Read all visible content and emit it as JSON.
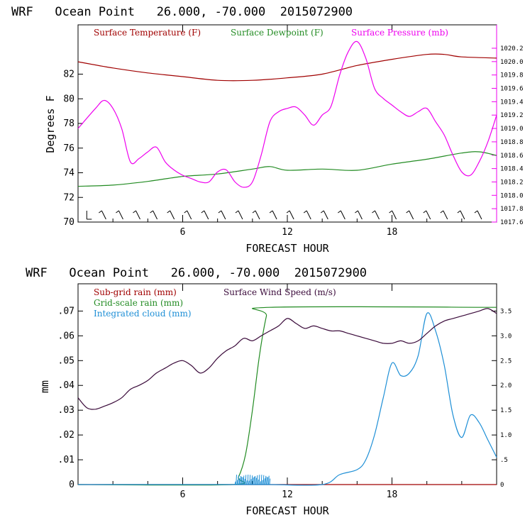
{
  "chart_data": [
    {
      "type": "line",
      "title": "WRF   Ocean Point   26.000, -70.000  2015072900",
      "xlabel": "FORECAST HOUR",
      "ylabel": "Degrees F",
      "xlim": [
        0,
        24
      ],
      "ylim": [
        70,
        86
      ],
      "y2lim": [
        1017.6,
        1020.55
      ],
      "xticks": [
        "6",
        "12",
        "18"
      ],
      "yticks": [
        "70",
        "72",
        "74",
        "76",
        "78",
        "80",
        "82"
      ],
      "y2ticks": [
        "1017.6",
        "1017.8",
        "1018.0",
        "1018.2",
        "1018.4",
        "1018.6",
        "1018.8",
        "1019.0",
        "1019.2",
        "1019.4",
        "1019.6",
        "1019.8",
        "1020.0",
        "1020.2"
      ],
      "grid": false,
      "legend": "top",
      "barb_count": 24,
      "colors": {
        "temp": "#a00000",
        "dew": "#228b22",
        "pres": "#ee00ee",
        "y2axis": "#ee00ee"
      },
      "series": [
        {
          "name": "Surface Temperature (F)",
          "axis": "left",
          "color": "#a00000",
          "x": [
            0,
            2,
            4,
            6,
            8,
            10,
            12,
            14,
            16,
            18,
            20,
            21,
            22,
            24
          ],
          "y": [
            83.0,
            82.5,
            82.1,
            81.8,
            81.5,
            81.5,
            81.7,
            82.0,
            82.7,
            83.2,
            83.6,
            83.6,
            83.4,
            83.3
          ]
        },
        {
          "name": "Surface Dewpoint (F)",
          "axis": "left",
          "color": "#228b22",
          "x": [
            0,
            2,
            4,
            6,
            8,
            10,
            11,
            12,
            14,
            16,
            18,
            20,
            22,
            23,
            24
          ],
          "y": [
            72.9,
            73.0,
            73.3,
            73.7,
            73.9,
            74.3,
            74.5,
            74.2,
            74.3,
            74.2,
            74.7,
            75.1,
            75.6,
            75.7,
            75.4
          ]
        },
        {
          "name": "Surface Pressure (mb)",
          "axis": "right",
          "color": "#ee00ee",
          "x": [
            0,
            1,
            1.5,
            2,
            2.5,
            3,
            3.5,
            4,
            4.5,
            5,
            5.5,
            6,
            6.5,
            7,
            7.5,
            8,
            8.5,
            9,
            9.5,
            10,
            10.5,
            11,
            11.5,
            12,
            12.5,
            13,
            13.5,
            14,
            14.5,
            15,
            15.5,
            16,
            16.5,
            17,
            17.5,
            18,
            18.5,
            19,
            19.5,
            20,
            20.5,
            21,
            21.5,
            22,
            22.5,
            23,
            23.5,
            24
          ],
          "y": [
            1019.0,
            1019.3,
            1019.42,
            1019.3,
            1019.0,
            1018.5,
            1018.55,
            1018.65,
            1018.72,
            1018.5,
            1018.38,
            1018.3,
            1018.25,
            1018.2,
            1018.2,
            1018.35,
            1018.38,
            1018.2,
            1018.12,
            1018.2,
            1018.6,
            1019.1,
            1019.25,
            1019.3,
            1019.32,
            1019.2,
            1019.05,
            1019.2,
            1019.33,
            1019.8,
            1020.15,
            1020.3,
            1020.05,
            1019.6,
            1019.45,
            1019.35,
            1019.25,
            1019.18,
            1019.25,
            1019.3,
            1019.1,
            1018.9,
            1018.6,
            1018.35,
            1018.3,
            1018.5,
            1018.8,
            1019.2
          ]
        }
      ]
    },
    {
      "type": "line",
      "title": "WRF   Ocean Point   26.000, -70.000  2015072900",
      "xlabel": "FORECAST HOUR",
      "ylabel": "mm",
      "xlim": [
        0,
        24
      ],
      "ylim": [
        0,
        0.081
      ],
      "y2lim": [
        0,
        4.05
      ],
      "xticks": [
        "6",
        "12",
        "18"
      ],
      "yticks": [
        "0",
        ".01",
        ".02",
        ".03",
        ".04",
        ".05",
        ".06",
        ".07"
      ],
      "y2ticks": [
        "0",
        ".5",
        "1.0",
        "1.5",
        "2.0",
        "2.5",
        "3.0",
        "3.5"
      ],
      "grid": false,
      "legend": "top-left",
      "colors": {
        "subgrid": "#a00000",
        "gridscale": "#228b22",
        "cloud": "#1e8fd6",
        "wind": "#3a0a3a"
      },
      "series": [
        {
          "name": "Sub-grid rain (mm)",
          "axis": "left",
          "color": "#a00000",
          "x": [
            0,
            24
          ],
          "y": [
            0,
            0
          ]
        },
        {
          "name": "Grid-scale rain (mm)",
          "axis": "left",
          "color": "#228b22",
          "x": [
            0,
            8.8,
            9.2,
            9.6,
            10.0,
            10.4,
            10.8,
            11.0,
            24
          ],
          "y": [
            0,
            0,
            0.003,
            0.012,
            0.03,
            0.052,
            0.068,
            0.0715,
            0.0715
          ]
        },
        {
          "name": "Integrated cloud (mm)",
          "axis": "left",
          "color": "#1e8fd6",
          "x": [
            0,
            8.8,
            11,
            14,
            15,
            16,
            16.5,
            17,
            17.5,
            18,
            18.5,
            19,
            19.5,
            20,
            20.5,
            21,
            21.5,
            22,
            22.5,
            23,
            23.5,
            24
          ],
          "y": [
            0,
            0,
            0,
            0,
            0.004,
            0.006,
            0.01,
            0.02,
            0.035,
            0.049,
            0.044,
            0.045,
            0.052,
            0.069,
            0.062,
            0.048,
            0.028,
            0.019,
            0.028,
            0.025,
            0.018,
            0.011
          ],
          "spike_range": [
            9,
            11
          ],
          "spike_max": 0.004
        },
        {
          "name": "Surface Wind Speed (m/s)",
          "axis": "right",
          "color": "#3a0a3a",
          "x": [
            0,
            0.5,
            1,
            1.5,
            2,
            2.5,
            3,
            3.5,
            4,
            4.5,
            5,
            5.5,
            6,
            6.5,
            7,
            7.5,
            8,
            8.5,
            9,
            9.5,
            10,
            10.5,
            11,
            11.5,
            12,
            12.5,
            13,
            13.5,
            14,
            14.5,
            15,
            15.5,
            16,
            16.5,
            17,
            17.5,
            18,
            18.5,
            19,
            19.5,
            20,
            20.5,
            21,
            21.5,
            22,
            22.5,
            23,
            23.5,
            24
          ],
          "y": [
            1.75,
            1.55,
            1.52,
            1.58,
            1.65,
            1.75,
            1.92,
            2.0,
            2.1,
            2.25,
            2.35,
            2.45,
            2.5,
            2.4,
            2.25,
            2.35,
            2.55,
            2.7,
            2.8,
            2.95,
            2.9,
            3.0,
            3.1,
            3.2,
            3.35,
            3.25,
            3.15,
            3.2,
            3.15,
            3.1,
            3.1,
            3.05,
            3.0,
            2.95,
            2.9,
            2.85,
            2.85,
            2.9,
            2.85,
            2.9,
            3.05,
            3.2,
            3.3,
            3.35,
            3.4,
            3.45,
            3.5,
            3.55,
            3.45
          ]
        }
      ]
    }
  ]
}
